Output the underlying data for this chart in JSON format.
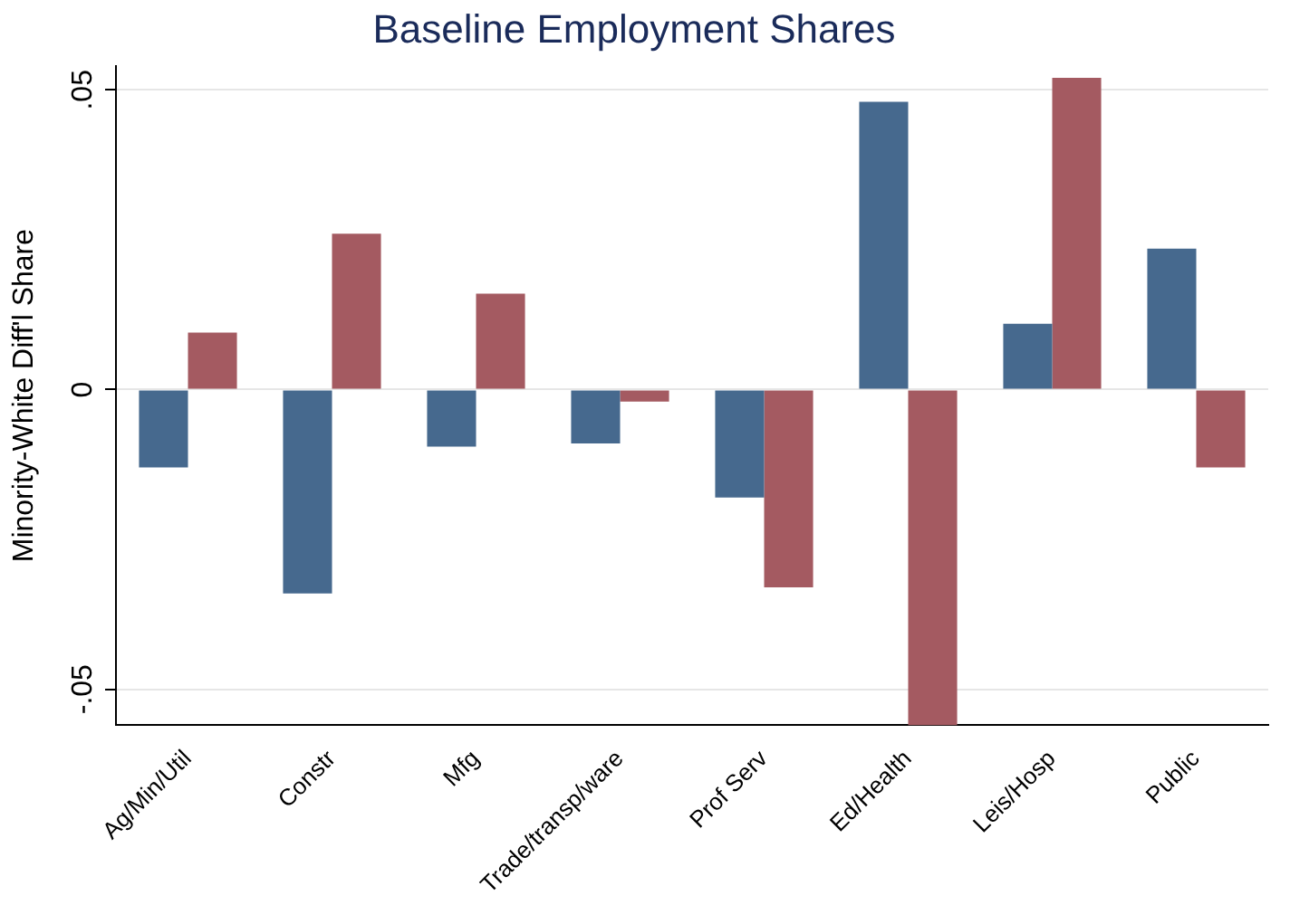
{
  "chart_data": {
    "type": "bar",
    "title": "Baseline Employment Shares",
    "ylabel": "Minority-White Diff'l Share",
    "categories": [
      "Ag/Min/Util",
      "Constr",
      "Mfg",
      "Trade/transp/ware",
      "Prof Serv",
      "Ed/Health",
      "Leis/Hosp",
      "Public"
    ],
    "series": [
      {
        "color": "#46698e",
        "values": [
          -0.013,
          -0.034,
          -0.0095,
          -0.009,
          -0.018,
          0.048,
          0.011,
          0.0235
        ]
      },
      {
        "color": "#a45a61",
        "values": [
          0.0095,
          0.026,
          0.016,
          -0.002,
          -0.033,
          -0.056,
          0.052,
          -0.013
        ]
      }
    ],
    "ylim": [
      -0.056,
      0.054
    ],
    "yticks": [
      {
        "value": -0.05,
        "label": "-.05"
      },
      {
        "value": 0,
        "label": "0"
      },
      {
        "value": 0.05,
        "label": ".05"
      }
    ],
    "grid": "y",
    "legend": false
  }
}
